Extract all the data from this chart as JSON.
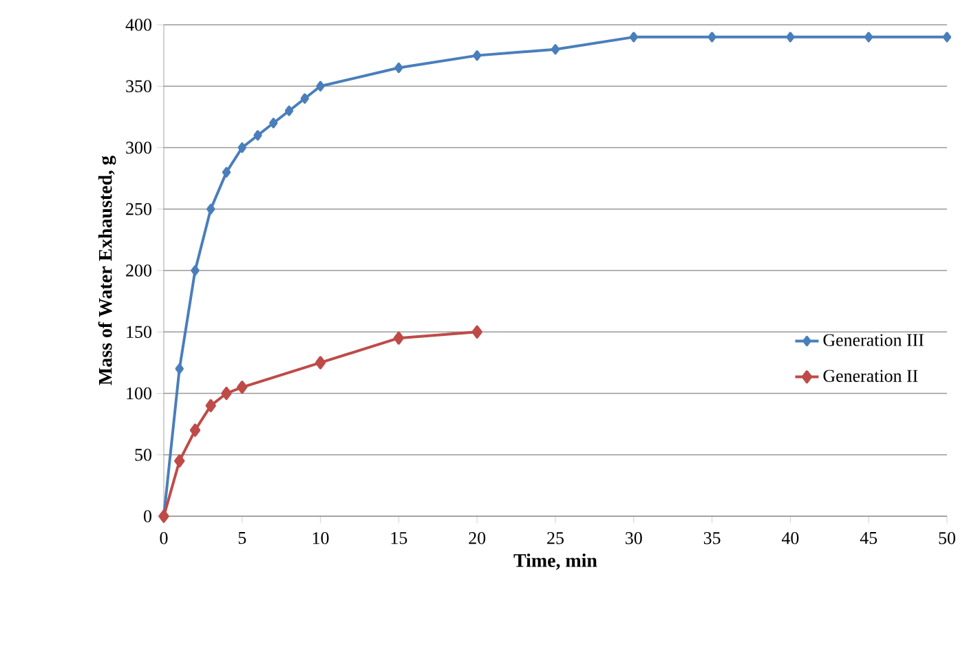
{
  "chart_data": {
    "type": "line",
    "xlabel": "Time, min",
    "ylabel": "Mass of Water Exhausted, g",
    "xlim": [
      0,
      50
    ],
    "xticks": [
      0,
      5,
      10,
      15,
      20,
      25,
      30,
      35,
      40,
      45,
      50
    ],
    "ylim": [
      0,
      400
    ],
    "yticks": [
      0,
      50,
      100,
      150,
      200,
      250,
      300,
      350,
      400
    ],
    "grid": "y",
    "legend": "right",
    "marker": "diamond",
    "line_style": "solid",
    "series": [
      {
        "name": "Generation III",
        "color": "#4a7ebb",
        "x": [
          0,
          1,
          2,
          3,
          4,
          5,
          6,
          7,
          8,
          9,
          10,
          15,
          20,
          25,
          30,
          35,
          40,
          45,
          50
        ],
        "values": [
          0,
          120,
          200,
          250,
          280,
          300,
          310,
          320,
          330,
          340,
          350,
          365,
          375,
          380,
          390,
          390,
          390,
          390,
          390
        ]
      },
      {
        "name": "Generation II",
        "color": "#be4b48",
        "x": [
          0,
          1,
          2,
          3,
          4,
          5,
          10,
          15,
          20
        ],
        "values": [
          0,
          45,
          70,
          90,
          100,
          105,
          125,
          145,
          150
        ]
      }
    ]
  }
}
